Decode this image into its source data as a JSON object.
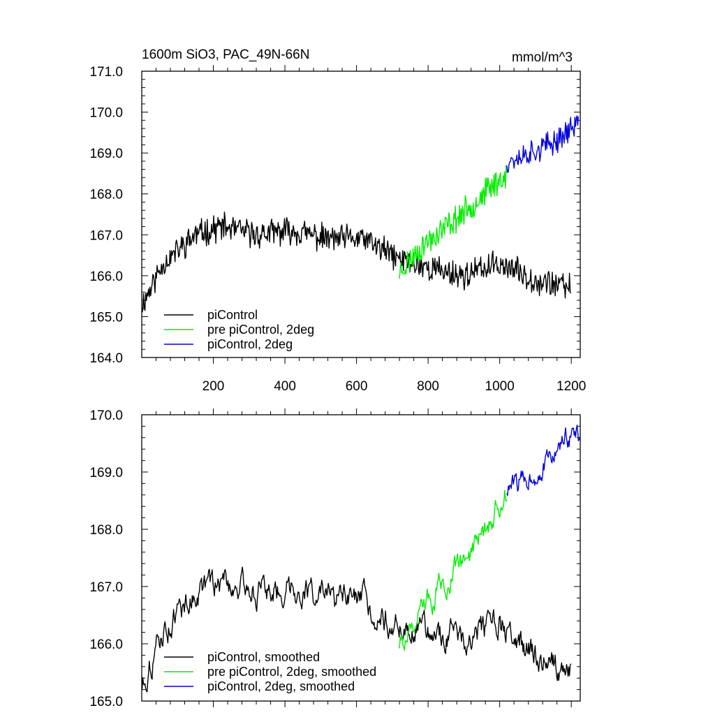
{
  "header": {
    "title": "1600m SiO3, PAC_49N-66N",
    "units": "mmol/m^3"
  },
  "colors": {
    "piControl": "#000000",
    "pre_piControl_2deg": "#00ee00",
    "piControl_2deg": "#0000dd"
  },
  "chart_data": [
    {
      "type": "line",
      "name": "top-panel",
      "xlim": [
        0,
        1225
      ],
      "ylim": [
        164.0,
        171.0
      ],
      "xticks": [
        200,
        400,
        600,
        800,
        1000,
        1200
      ],
      "xtick_labels": [
        "200",
        "400",
        "600",
        "800",
        "1000",
        "1200"
      ],
      "yticks": [
        164.0,
        165.0,
        166.0,
        167.0,
        168.0,
        169.0,
        170.0,
        171.0
      ],
      "ytick_labels": [
        "164.0",
        "165.0",
        "166.0",
        "167.0",
        "168.0",
        "169.0",
        "170.0",
        "171.0"
      ],
      "legend_labels": [
        "piControl",
        "pre piControl, 2deg",
        "piControl, 2deg"
      ],
      "series": [
        {
          "name": "piControl",
          "color_key": "piControl",
          "x_start": 1,
          "x_end": 1200,
          "seed": 11,
          "noise": 0.28,
          "trend": [
            [
              1,
              165.3
            ],
            [
              60,
              166.3
            ],
            [
              150,
              167.0
            ],
            [
              220,
              167.2
            ],
            [
              320,
              167.0
            ],
            [
              420,
              167.1
            ],
            [
              520,
              166.9
            ],
            [
              620,
              166.9
            ],
            [
              720,
              166.4
            ],
            [
              800,
              166.2
            ],
            [
              900,
              166.0
            ],
            [
              1000,
              166.3
            ],
            [
              1100,
              165.9
            ],
            [
              1200,
              165.7
            ]
          ]
        },
        {
          "name": "pre piControl, 2deg",
          "color_key": "pre_piControl_2deg",
          "x_start": 720,
          "x_end": 1020,
          "seed": 23,
          "noise": 0.28,
          "trend": [
            [
              720,
              166.1
            ],
            [
              780,
              166.7
            ],
            [
              850,
              167.2
            ],
            [
              920,
              167.7
            ],
            [
              980,
              168.2
            ],
            [
              1020,
              168.5
            ]
          ]
        },
        {
          "name": "piControl, 2deg",
          "color_key": "piControl_2deg",
          "x_start": 1020,
          "x_end": 1220,
          "seed": 37,
          "noise": 0.26,
          "trend": [
            [
              1020,
              168.8
            ],
            [
              1080,
              169.0
            ],
            [
              1140,
              169.2
            ],
            [
              1200,
              169.6
            ],
            [
              1220,
              169.8
            ]
          ]
        }
      ]
    },
    {
      "type": "line",
      "name": "bottom-panel",
      "xlim": [
        0,
        1225
      ],
      "ylim": [
        165.0,
        170.0
      ],
      "xticks": [
        200,
        400,
        600,
        800,
        1000,
        1200
      ],
      "xtick_labels": [],
      "yticks": [
        165.0,
        166.0,
        167.0,
        168.0,
        169.0,
        170.0
      ],
      "ytick_labels": [
        "165.0",
        "166.0",
        "167.0",
        "168.0",
        "169.0",
        "170.0"
      ],
      "legend_labels": [
        "piControl, smoothed",
        "pre piControl, 2deg, smoothed",
        "piControl, 2deg, smoothed"
      ],
      "series": [
        {
          "name": "piControl, smoothed",
          "color_key": "piControl",
          "x_start": 1,
          "x_end": 1200,
          "seed": 11,
          "noise": 0.22,
          "smooth": true,
          "trend": [
            [
              1,
              165.3
            ],
            [
              60,
              166.2
            ],
            [
              150,
              166.9
            ],
            [
              230,
              167.1
            ],
            [
              330,
              166.9
            ],
            [
              420,
              167.0
            ],
            [
              520,
              166.8
            ],
            [
              620,
              166.7
            ],
            [
              720,
              166.3
            ],
            [
              800,
              166.2
            ],
            [
              900,
              166.1
            ],
            [
              1000,
              166.3
            ],
            [
              1100,
              165.8
            ],
            [
              1200,
              165.5
            ]
          ]
        },
        {
          "name": "pre piControl, 2deg, smoothed",
          "color_key": "pre_piControl_2deg",
          "x_start": 720,
          "x_end": 1020,
          "seed": 23,
          "noise": 0.2,
          "smooth": true,
          "trend": [
            [
              720,
              166.0
            ],
            [
              780,
              166.5
            ],
            [
              850,
              167.1
            ],
            [
              920,
              167.6
            ],
            [
              980,
              168.2
            ],
            [
              1020,
              168.6
            ]
          ]
        },
        {
          "name": "piControl, 2deg, smoothed",
          "color_key": "piControl_2deg",
          "x_start": 1020,
          "x_end": 1225,
          "seed": 37,
          "noise": 0.18,
          "smooth": true,
          "trend": [
            [
              1020,
              168.7
            ],
            [
              1080,
              168.9
            ],
            [
              1140,
              169.2
            ],
            [
              1200,
              169.7
            ],
            [
              1225,
              169.6
            ]
          ]
        }
      ]
    }
  ]
}
